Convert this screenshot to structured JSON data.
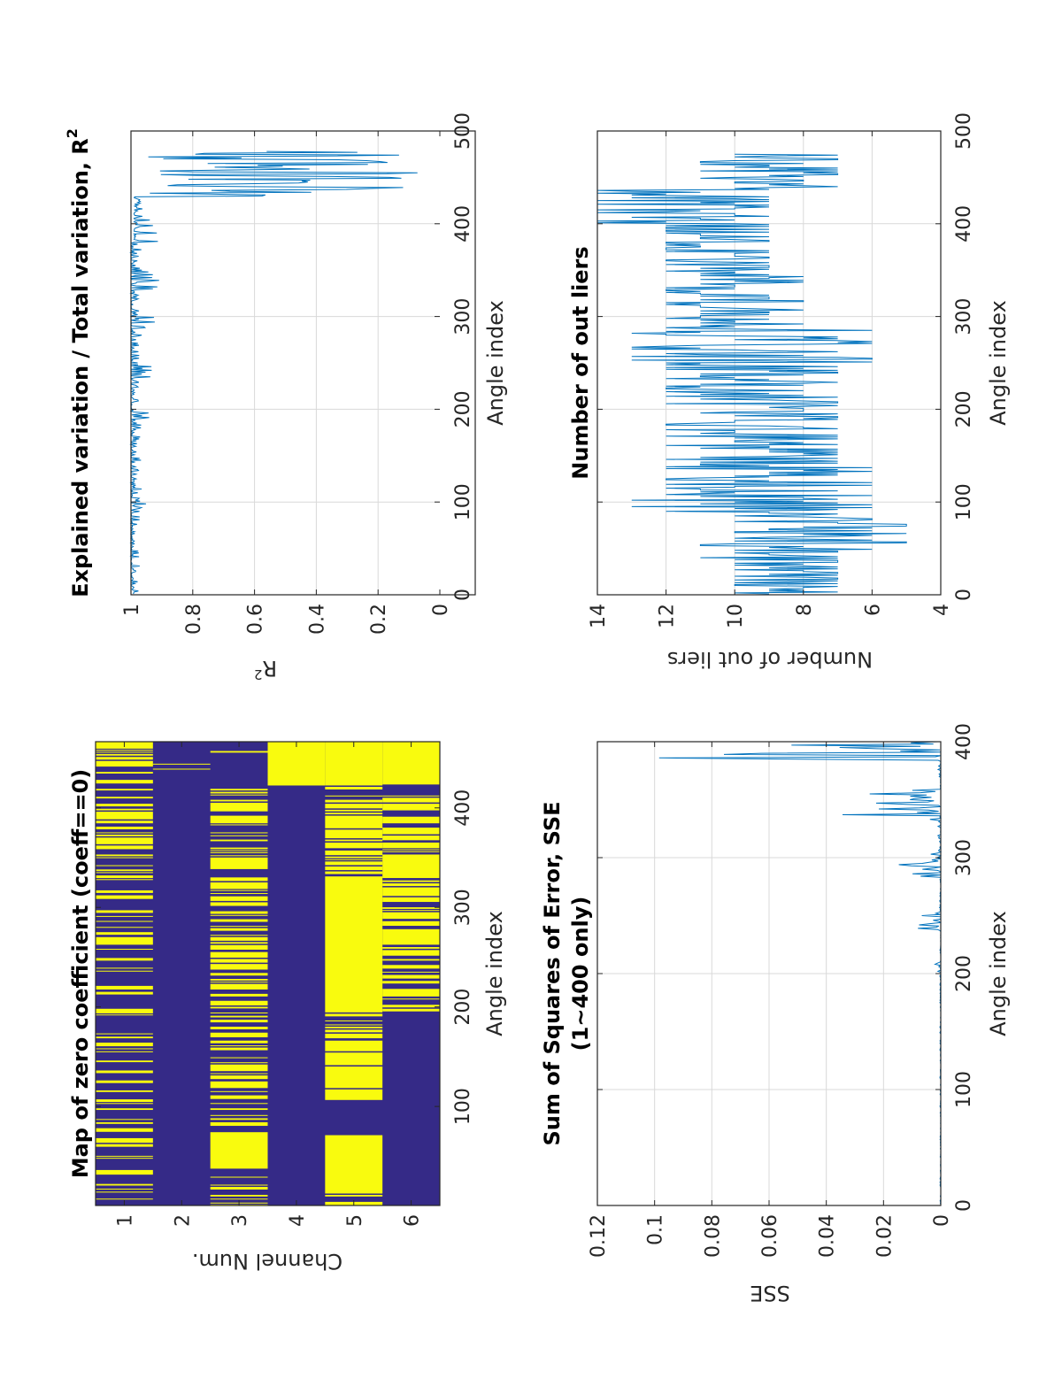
{
  "colors": {
    "line": "#0072bd",
    "zero": "#f9fb0e",
    "nonzero": "#352a87",
    "axis": "#262626",
    "grid": "#d9d9d9"
  },
  "chart_data": [
    {
      "id": "zero_map",
      "type": "heatmap",
      "title": "Map of zero coefficient (coeff==0)",
      "xlabel": "Angle index",
      "ylabel": "Channel Num.",
      "xlim": [
        0.5,
        466.5
      ],
      "xticks": [
        100,
        200,
        300,
        400
      ],
      "yticks": [
        1,
        2,
        3,
        4,
        5,
        6
      ],
      "n_angles": 466,
      "note": "binary map; yellow = zero coefficient; values approximated as density of zeros per angle range",
      "channels": [
        {
          "channel": 1,
          "zero_density": [
            [
              1,
              290,
              0.32
            ],
            [
              290,
              335,
              0.5
            ],
            [
              335,
              425,
              0.35
            ],
            [
              425,
              466,
              0.5
            ]
          ]
        },
        {
          "channel": 2,
          "zero_density": [
            [
              1,
              438,
              0
            ],
            [
              439,
              439,
              1
            ],
            [
              440,
              443,
              0
            ],
            [
              444,
              444,
              1
            ],
            [
              445,
              466,
              0
            ]
          ]
        },
        {
          "channel": 3,
          "zero_density": [
            [
              1,
              40,
              0.35
            ],
            [
              40,
              75,
              0.7
            ],
            [
              75,
              420,
              0.42
            ],
            [
              420,
              445,
              0.05
            ],
            [
              445,
              466,
              0.3
            ]
          ]
        },
        {
          "channel": 4,
          "zero_density": [
            [
              1,
              423,
              0
            ],
            [
              423,
              466,
              0.7
            ]
          ]
        },
        {
          "channel": 5,
          "zero_density": [
            [
              1,
              28,
              0.55
            ],
            [
              28,
              72,
              0.8
            ],
            [
              72,
              105,
              0.05
            ],
            [
              105,
              195,
              0.6
            ],
            [
              195,
              330,
              0.78
            ],
            [
              330,
              395,
              0.6
            ],
            [
              395,
              423,
              0.45
            ],
            [
              423,
              466,
              0.75
            ]
          ]
        },
        {
          "channel": 6,
          "zero_density": [
            [
              1,
              60,
              0.02
            ],
            [
              60,
              130,
              0.08
            ],
            [
              130,
              195,
              0.12
            ],
            [
              195,
              310,
              0.55
            ],
            [
              310,
              370,
              0.6
            ],
            [
              370,
              414,
              0.7
            ],
            [
              414,
              422,
              0.02
            ],
            [
              422,
              466,
              0.92
            ]
          ]
        }
      ]
    },
    {
      "id": "r2",
      "type": "line",
      "title": "Explained variation / Total variation, R",
      "title_sup": "2",
      "xlabel": "Angle index",
      "ylabel": "R",
      "ylabel_sup": "2",
      "xlim": [
        0,
        500
      ],
      "ylim": [
        0,
        1
      ],
      "xticks": [
        0,
        100,
        200,
        300,
        400,
        500
      ],
      "yticks": [
        0,
        0.2,
        0.4,
        0.6,
        0.8,
        1
      ],
      "ytick_labels": [
        "0",
        "0.2",
        "0.4",
        "0.6",
        "0.8",
        "1"
      ],
      "grid": true,
      "note": "approximate value ranges per angle range [from,to,min,max]",
      "segments": [
        [
          1,
          90,
          0.97,
          1
        ],
        [
          90,
          100,
          0.95,
          1
        ],
        [
          100,
          190,
          0.965,
          1
        ],
        [
          190,
          205,
          0.93,
          1
        ],
        [
          205,
          235,
          0.97,
          1
        ],
        [
          235,
          250,
          0.92,
          1
        ],
        [
          250,
          285,
          0.965,
          1
        ],
        [
          285,
          300,
          0.92,
          1
        ],
        [
          300,
          330,
          0.97,
          1
        ],
        [
          330,
          350,
          0.9,
          1
        ],
        [
          350,
          380,
          0.96,
          1
        ],
        [
          380,
          405,
          0.9,
          0.99
        ],
        [
          405,
          430,
          0.96,
          0.99
        ],
        [
          430,
          478,
          0.07,
          0.97
        ]
      ]
    },
    {
      "id": "sse",
      "type": "line",
      "title": "Sum of Squares of Error, SSE",
      "title_line2": "(1~400 only)",
      "xlabel": "Angle index",
      "ylabel": "SSE",
      "xlim": [
        0,
        400
      ],
      "ylim": [
        0,
        0.12
      ],
      "xticks": [
        0,
        100,
        200,
        300,
        400
      ],
      "yticks": [
        0,
        0.02,
        0.04,
        0.06,
        0.08,
        0.1,
        0.12
      ],
      "ytick_labels": [
        "0",
        "0.02",
        "0.04",
        "0.06",
        "0.08",
        "0.1",
        "0.12"
      ],
      "grid": true,
      "segments": [
        [
          1,
          190,
          0,
          0.0003
        ],
        [
          190,
          210,
          0,
          0.002
        ],
        [
          210,
          238,
          0,
          0.0003
        ],
        [
          238,
          256,
          0,
          0.009
        ],
        [
          256,
          283,
          0,
          0.0005
        ],
        [
          283,
          305,
          0,
          0.015
        ],
        [
          305,
          333,
          0,
          0.001
        ],
        [
          333,
          362,
          0,
          0.038
        ],
        [
          362,
          385,
          0,
          0.001
        ],
        [
          385,
          400,
          0,
          0.115
        ]
      ]
    },
    {
      "id": "outliers",
      "type": "line",
      "title": "Number of out liers",
      "xlabel": "Angle index",
      "ylabel": "Number of out liers",
      "xlim": [
        0,
        500
      ],
      "ylim": [
        4,
        14
      ],
      "xticks": [
        0,
        100,
        200,
        300,
        400,
        500
      ],
      "yticks": [
        4,
        6,
        8,
        10,
        12,
        14
      ],
      "ytick_labels": [
        "4",
        "6",
        "8",
        "10",
        "12",
        "14"
      ],
      "grid": true,
      "segments": [
        [
          1,
          40,
          7,
          10
        ],
        [
          40,
          55,
          6,
          11
        ],
        [
          55,
          90,
          5,
          10
        ],
        [
          90,
          145,
          6,
          13
        ],
        [
          145,
          250,
          7,
          12
        ],
        [
          250,
          290,
          6,
          13
        ],
        [
          290,
          345,
          8,
          12
        ],
        [
          345,
          400,
          9,
          12
        ],
        [
          400,
          440,
          9,
          14
        ],
        [
          440,
          475,
          7,
          11
        ]
      ]
    }
  ]
}
